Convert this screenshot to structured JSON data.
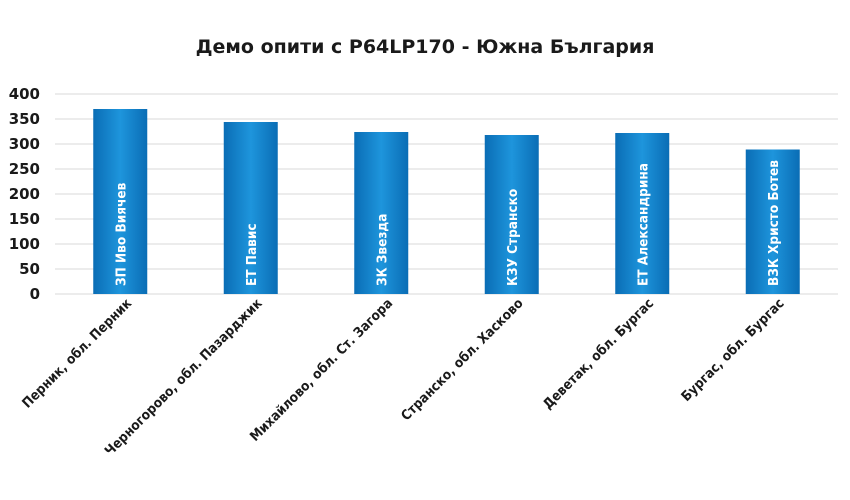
{
  "chart_data": {
    "type": "bar",
    "title": "Демо опити с P64LP170 - Южна България",
    "categories": [
      "Перник, обл. Перник",
      "Черногорово, обл. Пазарджик",
      "Михайлово, обл. Ст. Загора",
      "Странско, обл. Хасково",
      "Деветак, обл. Бургас",
      "Бургас, обл. Бургас"
    ],
    "bar_labels": [
      "ЗП Иво Виячев",
      "ЕТ Павис",
      "ЗК Звезда",
      "КЗУ Странско",
      "ЕТ Александрина",
      "ВЗК Христо Ботев"
    ],
    "values": [
      370,
      344,
      324,
      318,
      322,
      289
    ],
    "ylim": [
      0,
      400
    ],
    "yticks": [
      0,
      50,
      100,
      150,
      200,
      250,
      300,
      350,
      400
    ],
    "xlabel": "",
    "ylabel": "",
    "grid": true,
    "legend": "none",
    "colors": {
      "bar_dark": "#0a6db5",
      "bar_light": "#1e95dc",
      "grid": "#d9d9d9",
      "text": "#1a1a1a"
    }
  }
}
